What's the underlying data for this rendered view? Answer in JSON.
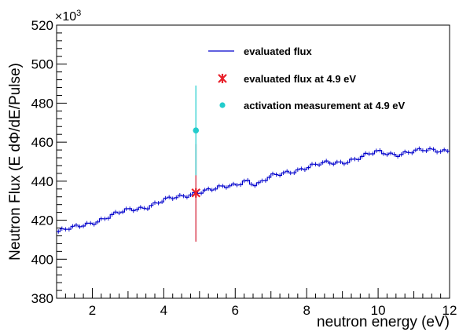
{
  "chart_data": {
    "type": "line",
    "title": "",
    "xlabel": "neutron energy (eV)",
    "ylabel": "Neutron Flux (E dΦ/dE/Pulse)",
    "y_multiplier": "×10",
    "y_multiplier_exp": "3",
    "xlim": [
      1,
      12
    ],
    "ylim": [
      380,
      520
    ],
    "x_ticks": [
      2,
      4,
      6,
      8,
      10,
      12
    ],
    "y_ticks": [
      380,
      400,
      420,
      440,
      460,
      480,
      500,
      520
    ],
    "grid": false,
    "legend_position": "top-right",
    "colors": {
      "flux": "#0000cc",
      "point": "#e8202a",
      "point_err": "#e06070",
      "activation": "#22cccc",
      "activation_err": "#66dddd"
    },
    "series": [
      {
        "name": "evaluated flux",
        "x": [
          1.0,
          1.5,
          2.0,
          2.5,
          3.0,
          3.5,
          4.0,
          4.5,
          5.0,
          5.5,
          6.0,
          6.3,
          6.6,
          7.0,
          7.5,
          8.0,
          8.5,
          9.0,
          9.5,
          10.0,
          10.5,
          11.0,
          11.5,
          12.0
        ],
        "values": [
          414,
          416,
          419,
          422,
          425,
          427,
          430,
          432,
          435,
          436,
          438,
          441,
          438,
          442,
          445,
          447,
          449,
          450,
          452,
          455,
          454,
          455,
          456,
          456
        ]
      },
      {
        "name": "evaluated flux at 4.9 eV",
        "x": [
          4.9
        ],
        "values": [
          434
        ],
        "err": [
          25
        ]
      },
      {
        "name": "activation measurement at 4.9 eV",
        "x": [
          4.9
        ],
        "values": [
          466
        ],
        "err": [
          23
        ]
      }
    ]
  }
}
